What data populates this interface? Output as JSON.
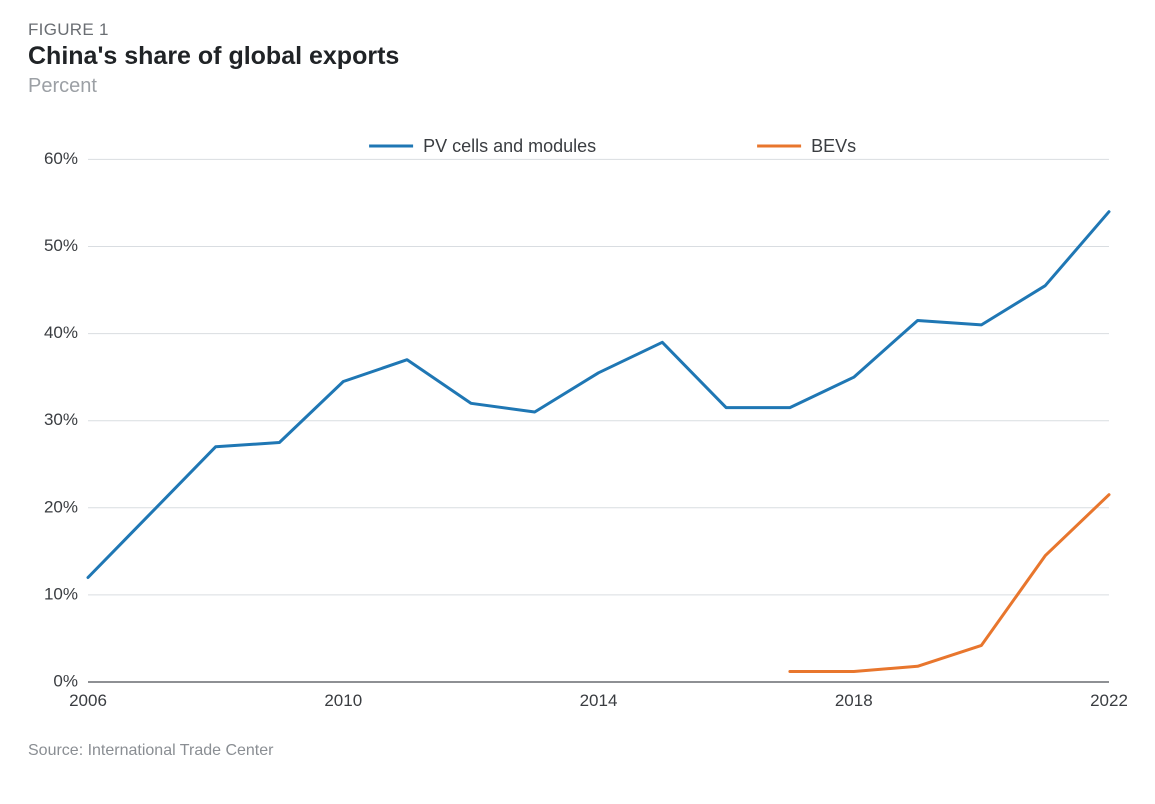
{
  "figure_label": "FIGURE 1",
  "title": "China's share of global exports",
  "subtitle": "Percent",
  "source": "Source: International Trade Center",
  "chart": {
    "type": "line",
    "background_color": "#ffffff",
    "grid_color": "#d9dde1",
    "axis_color": "#4a4e53",
    "text_color": "#3a3d41",
    "title_fontsize": 25,
    "label_fontsize": 17,
    "legend_fontsize": 18,
    "line_width": 3,
    "x": {
      "min": 2006,
      "max": 2022,
      "ticks": [
        2006,
        2010,
        2014,
        2018,
        2022
      ]
    },
    "y": {
      "min": 0,
      "max": 62,
      "ticks": [
        0,
        10,
        20,
        30,
        40,
        50,
        60
      ],
      "tick_suffix": "%"
    },
    "series": [
      {
        "name": "PV cells and modules",
        "color": "#1f77b4",
        "points": [
          [
            2006,
            12.0
          ],
          [
            2007,
            19.5
          ],
          [
            2008,
            27.0
          ],
          [
            2009,
            27.5
          ],
          [
            2010,
            34.5
          ],
          [
            2011,
            37.0
          ],
          [
            2012,
            32.0
          ],
          [
            2013,
            31.0
          ],
          [
            2014,
            35.5
          ],
          [
            2015,
            39.0
          ],
          [
            2016,
            31.5
          ],
          [
            2017,
            31.5
          ],
          [
            2018,
            35.0
          ],
          [
            2019,
            41.5
          ],
          [
            2020,
            41.0
          ],
          [
            2021,
            45.5
          ],
          [
            2022,
            54.0
          ]
        ]
      },
      {
        "name": "BEVs",
        "color": "#e8762d",
        "points": [
          [
            2017,
            1.2
          ],
          [
            2018,
            1.2
          ],
          [
            2019,
            1.8
          ],
          [
            2020,
            4.2
          ],
          [
            2021,
            14.5
          ],
          [
            2022,
            21.5
          ]
        ]
      }
    ],
    "legend": {
      "position": "top-center",
      "swatch_length": 44,
      "gap": 150
    }
  }
}
